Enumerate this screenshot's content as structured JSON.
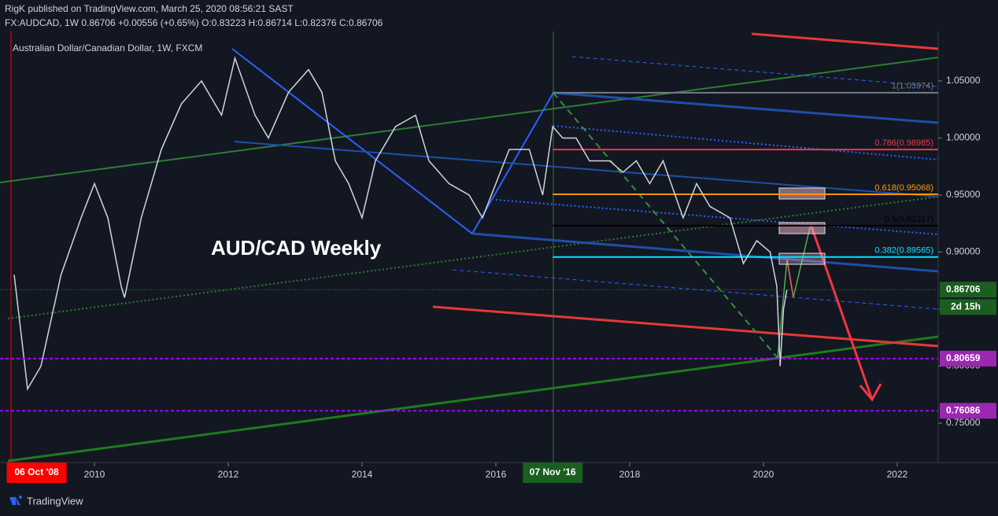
{
  "header": {
    "publisher": "RigK published on TradingView.com, March 25, 2020 08:56:21 SAST",
    "symbol_line": "FX:AUDCAD, 1W  0.86706  +0.00556 (+0.65%)  O:0.83223  H:0.86714  L:0.82376  C:0.86706"
  },
  "footer": {
    "brand": "TradingView"
  },
  "chart_data": {
    "type": "line",
    "title": "Australian Dollar/Canadian Dollar, 1W, FXCM",
    "annotation": "AUD/CAD Weekly",
    "x": [
      2008.8,
      2009.0,
      2009.2,
      2009.5,
      2009.8,
      2010.0,
      2010.2,
      2010.4,
      2010.45,
      2010.7,
      2011.0,
      2011.3,
      2011.6,
      2011.9,
      2012.1,
      2012.4,
      2012.6,
      2012.9,
      2013.2,
      2013.4,
      2013.6,
      2013.8,
      2014.0,
      2014.2,
      2014.5,
      2014.8,
      2015.0,
      2015.3,
      2015.6,
      2015.8,
      2016.0,
      2016.2,
      2016.5,
      2016.7,
      2016.85,
      2017.0,
      2017.2,
      2017.4,
      2017.7,
      2017.9,
      2018.1,
      2018.3,
      2018.5,
      2018.8,
      2019.0,
      2019.2,
      2019.5,
      2019.7,
      2019.9,
      2020.1,
      2020.2,
      2020.25,
      2020.3,
      2020.35
    ],
    "values": [
      0.88,
      0.78,
      0.8,
      0.88,
      0.93,
      0.96,
      0.93,
      0.87,
      0.86,
      0.93,
      0.99,
      1.03,
      1.05,
      1.02,
      1.07,
      1.02,
      1.0,
      1.04,
      1.06,
      1.04,
      0.98,
      0.96,
      0.93,
      0.98,
      1.01,
      1.02,
      0.98,
      0.96,
      0.95,
      0.93,
      0.96,
      0.99,
      0.99,
      0.95,
      1.01,
      1.0,
      1.0,
      0.98,
      0.98,
      0.97,
      0.98,
      0.96,
      0.98,
      0.93,
      0.96,
      0.94,
      0.93,
      0.89,
      0.91,
      0.9,
      0.87,
      0.8,
      0.85,
      0.867
    ],
    "color": "#d1d4dc",
    "xlim": [
      2008.588,
      2022.612
    ],
    "ylim": [
      0.7155,
      1.0934
    ],
    "xticks": [
      2010,
      2012,
      2014,
      2016,
      2018,
      2020,
      2022
    ],
    "yticks": [
      {
        "value": 0.75,
        "label": "0.75000"
      },
      {
        "value": 0.8,
        "label": "0.80000"
      },
      {
        "value": 0.85,
        "label": "0.85000"
      },
      {
        "value": 0.9,
        "label": "0.90000"
      },
      {
        "value": 0.95,
        "label": "0.95000"
      },
      {
        "value": 1.0,
        "label": "1.00000"
      },
      {
        "value": 1.05,
        "label": "1.05000"
      }
    ],
    "fib_levels": [
      {
        "label": "1(1.03974)",
        "value": 1.03974,
        "color": "#787b86"
      },
      {
        "label": "0.786(0.98985)",
        "value": 0.98985,
        "color": "#f23645"
      },
      {
        "label": "0.618(0.95068)",
        "value": 0.95068,
        "color": "#ff9800"
      },
      {
        "label": "0.5(0.92317)",
        "value": 0.92317,
        "color": "#000000"
      },
      {
        "label": "0.382(0.89565)",
        "value": 0.89565,
        "color": "#00e5ff"
      }
    ],
    "price_tags": [
      {
        "label": "0.86706",
        "value": 0.86706,
        "color": "#1b5e20"
      },
      {
        "label": "0.80659",
        "value": 0.80659,
        "color": "#9c27b0"
      },
      {
        "label": "0.76086",
        "value": 0.76086,
        "color": "#9c27b0"
      }
    ],
    "countdown": "2d 15h",
    "date_tags": [
      {
        "label": "06 Oct '08",
        "value": 2008.76,
        "color": "#ff0000"
      },
      {
        "label": "07 Nov '16",
        "value": 2016.85,
        "color": "#1b5e20"
      }
    ]
  }
}
